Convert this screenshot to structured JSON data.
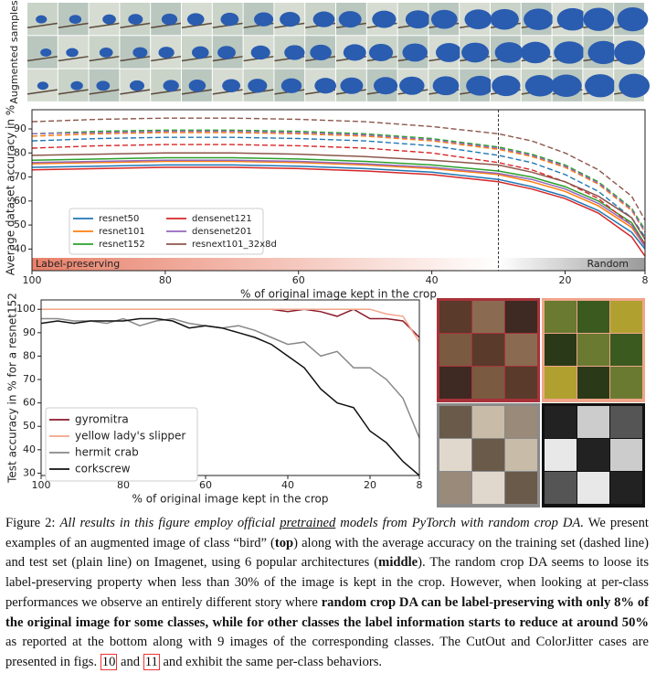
{
  "figure": {
    "samples_label": "Augmented samples"
  },
  "chart_data": [
    {
      "type": "line",
      "y_label": "Average dataset accuracy in %",
      "x_label": "% of original image kept in the crop",
      "xlim": [
        100,
        8
      ],
      "ylim": [
        31,
        98
      ],
      "xticks": [
        100,
        80,
        60,
        40,
        20,
        8
      ],
      "yticks": [
        40,
        50,
        60,
        70,
        80,
        90
      ],
      "threshold": 30,
      "regions": [
        "Label-preserving",
        "Random"
      ],
      "region_colors": [
        "#e8806a",
        "#9a9a9a"
      ],
      "legend": "lower left",
      "x": [
        100,
        90,
        80,
        70,
        60,
        50,
        40,
        30,
        25,
        20,
        15,
        10,
        8
      ],
      "series": [
        {
          "name": "resnet50",
          "color": "#1f77b4",
          "values": [
            74,
            74.5,
            75,
            75,
            74.5,
            73.5,
            72,
            69,
            66,
            62,
            56,
            47,
            40
          ],
          "train_values": [
            85,
            86,
            86.5,
            86.5,
            86,
            85,
            83,
            79,
            76,
            71,
            64,
            53,
            45
          ]
        },
        {
          "name": "resnet101",
          "color": "#ff7f0e",
          "values": [
            75.5,
            76,
            76.5,
            76.5,
            76,
            75,
            73.5,
            71,
            68,
            64,
            58,
            49,
            41
          ],
          "train_values": [
            87,
            88,
            88.5,
            88.5,
            88,
            87,
            85,
            81.5,
            78.5,
            74,
            67,
            56,
            47
          ]
        },
        {
          "name": "resnet152",
          "color": "#2ca02c",
          "values": [
            77,
            77.5,
            78,
            78,
            77.5,
            76.5,
            75,
            72.5,
            70,
            66,
            60,
            51,
            42
          ],
          "train_values": [
            88,
            89,
            89.5,
            89.5,
            89,
            88,
            86,
            82.5,
            79.5,
            75,
            68,
            57,
            48
          ]
        },
        {
          "name": "densenet121",
          "color": "#d62728",
          "values": [
            73,
            73.5,
            74,
            74,
            73.5,
            72.5,
            71,
            68,
            65,
            61,
            55,
            45,
            37
          ],
          "train_values": [
            82,
            83,
            83.5,
            83.5,
            83,
            82,
            80,
            76,
            73,
            68,
            61,
            50,
            42
          ]
        },
        {
          "name": "densenet201",
          "color": "#9467bd",
          "values": [
            76,
            76.5,
            77,
            77,
            76.5,
            75.5,
            74,
            71.5,
            69,
            65,
            59,
            50,
            41
          ],
          "train_values": [
            88,
            88.5,
            89,
            89,
            88.5,
            87.5,
            85.5,
            82,
            79,
            74.5,
            67.5,
            56.5,
            47
          ]
        },
        {
          "name": "resnext101_32x8d",
          "color": "#8c564b",
          "values": [
            79,
            79.5,
            80,
            80,
            79.5,
            78.5,
            77,
            75,
            72,
            68,
            62,
            53,
            44
          ],
          "train_values": [
            93,
            94,
            94.5,
            94.5,
            94,
            93,
            91,
            88,
            85,
            80,
            73,
            62,
            52
          ]
        }
      ]
    },
    {
      "type": "line",
      "y_label": "Test accuracy in % for a resnet152",
      "x_label": "% of original image kept in the crop",
      "xlim": [
        100,
        8
      ],
      "ylim": [
        29,
        104
      ],
      "xticks": [
        100,
        80,
        60,
        40,
        20,
        8
      ],
      "yticks": [
        30,
        40,
        50,
        60,
        70,
        80,
        90,
        100
      ],
      "legend": "lower left",
      "x": [
        100,
        96,
        92,
        88,
        84,
        80,
        76,
        72,
        68,
        64,
        60,
        56,
        52,
        48,
        44,
        40,
        36,
        32,
        28,
        24,
        20,
        16,
        12,
        8
      ],
      "series": [
        {
          "name": "gyromitra",
          "color": "#8b1a2a",
          "values": [
            100,
            100,
            100,
            100,
            100,
            100,
            100,
            100,
            100,
            100,
            100,
            100,
            100,
            100,
            100,
            99,
            100,
            99,
            97,
            100,
            96,
            96,
            95,
            88
          ]
        },
        {
          "name": "yellow lady's slipper",
          "color": "#f2a48a",
          "values": [
            100,
            100,
            100,
            100,
            100,
            100,
            100,
            100,
            100,
            100,
            100,
            100,
            100,
            100,
            100,
            100,
            100,
            100,
            100,
            100,
            100,
            98,
            97,
            86
          ]
        },
        {
          "name": "hermit crab",
          "color": "#888888",
          "values": [
            96,
            96,
            95,
            95,
            94,
            96,
            93,
            95,
            96,
            94,
            93,
            92,
            93,
            91,
            88,
            85,
            86,
            80,
            82,
            75,
            75,
            70,
            62,
            45
          ]
        },
        {
          "name": "corkscrew",
          "color": "#111111",
          "values": [
            94,
            95,
            94,
            95,
            95,
            95,
            96,
            96,
            95,
            92,
            93,
            92,
            90,
            88,
            85,
            80,
            75,
            66,
            60,
            58,
            48,
            43,
            35,
            29
          ]
        }
      ]
    }
  ],
  "caption": {
    "segments": [
      {
        "text": "Figure 2: ",
        "style": "normal"
      },
      {
        "text": "All results in this figure employ official ",
        "style": "italic"
      },
      {
        "text": "pretrained",
        "style": "underline"
      },
      {
        "text": " models from PyTorch with random crop DA.",
        "style": "italic"
      },
      {
        "text": " We present examples of an augmented image of class “bird” (",
        "style": "normal"
      },
      {
        "text": "top",
        "style": "bold"
      },
      {
        "text": ") along with the average accuracy on the training set (dashed line) and test set (plain line) on Imagenet, using 6 popular architectures (",
        "style": "normal"
      },
      {
        "text": "middle",
        "style": "bold"
      },
      {
        "text": "). The random crop DA seems to loose its label-preserving property when less than 30% of the image is kept in the crop. However, when looking at per-class performances we observe an entirely different story where ",
        "style": "normal"
      },
      {
        "text": "random crop DA can be label-preserving with only 8% of the original image for some classes, while for other classes the label information starts to reduce at around 50%",
        "style": "bold"
      },
      {
        "text": " as reported at the bottom along with 9 images of the corresponding classes. The CutOut and ColorJitter cases are presented in figs. ",
        "style": "normal"
      },
      {
        "text": "10",
        "style": "ref"
      },
      {
        "text": " and ",
        "style": "normal"
      },
      {
        "text": "11",
        "style": "ref"
      },
      {
        "text": " and exhibit the same per-class behaviors.",
        "style": "normal"
      }
    ]
  }
}
